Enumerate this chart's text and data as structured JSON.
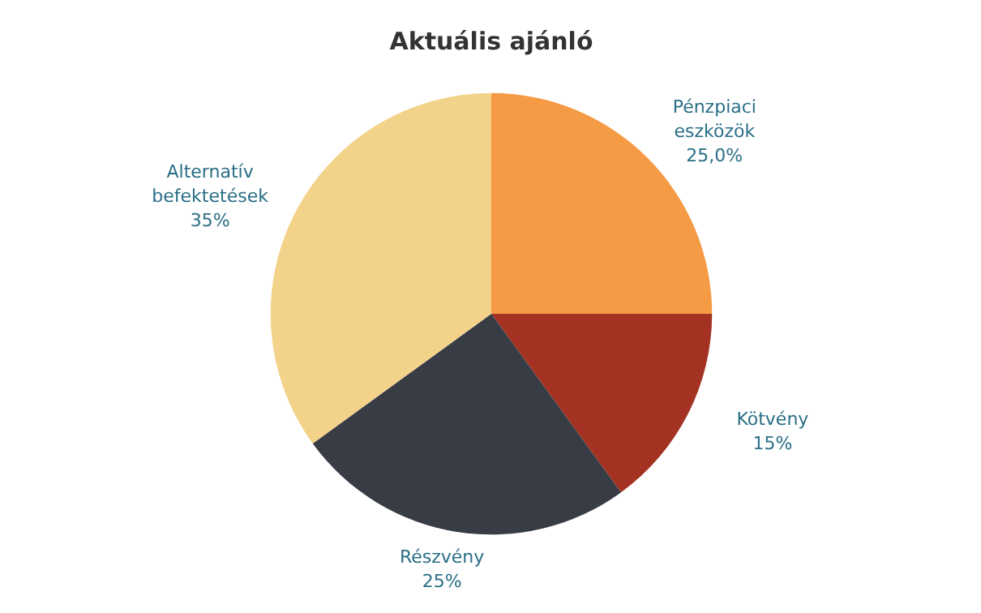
{
  "chart_data": {
    "type": "pie",
    "title": "Aktuális ajánló",
    "categories": [
      "Pénzpiaci eszközök",
      "Kötvény",
      "Részvény",
      "Alternatív befektetések"
    ],
    "values": [
      25,
      15,
      25,
      35
    ],
    "colors": [
      "#f59a45",
      "#a33222",
      "#383c45",
      "#f3d289"
    ],
    "value_labels": [
      "25,0%",
      "15%",
      "25%",
      "35%"
    ]
  }
}
